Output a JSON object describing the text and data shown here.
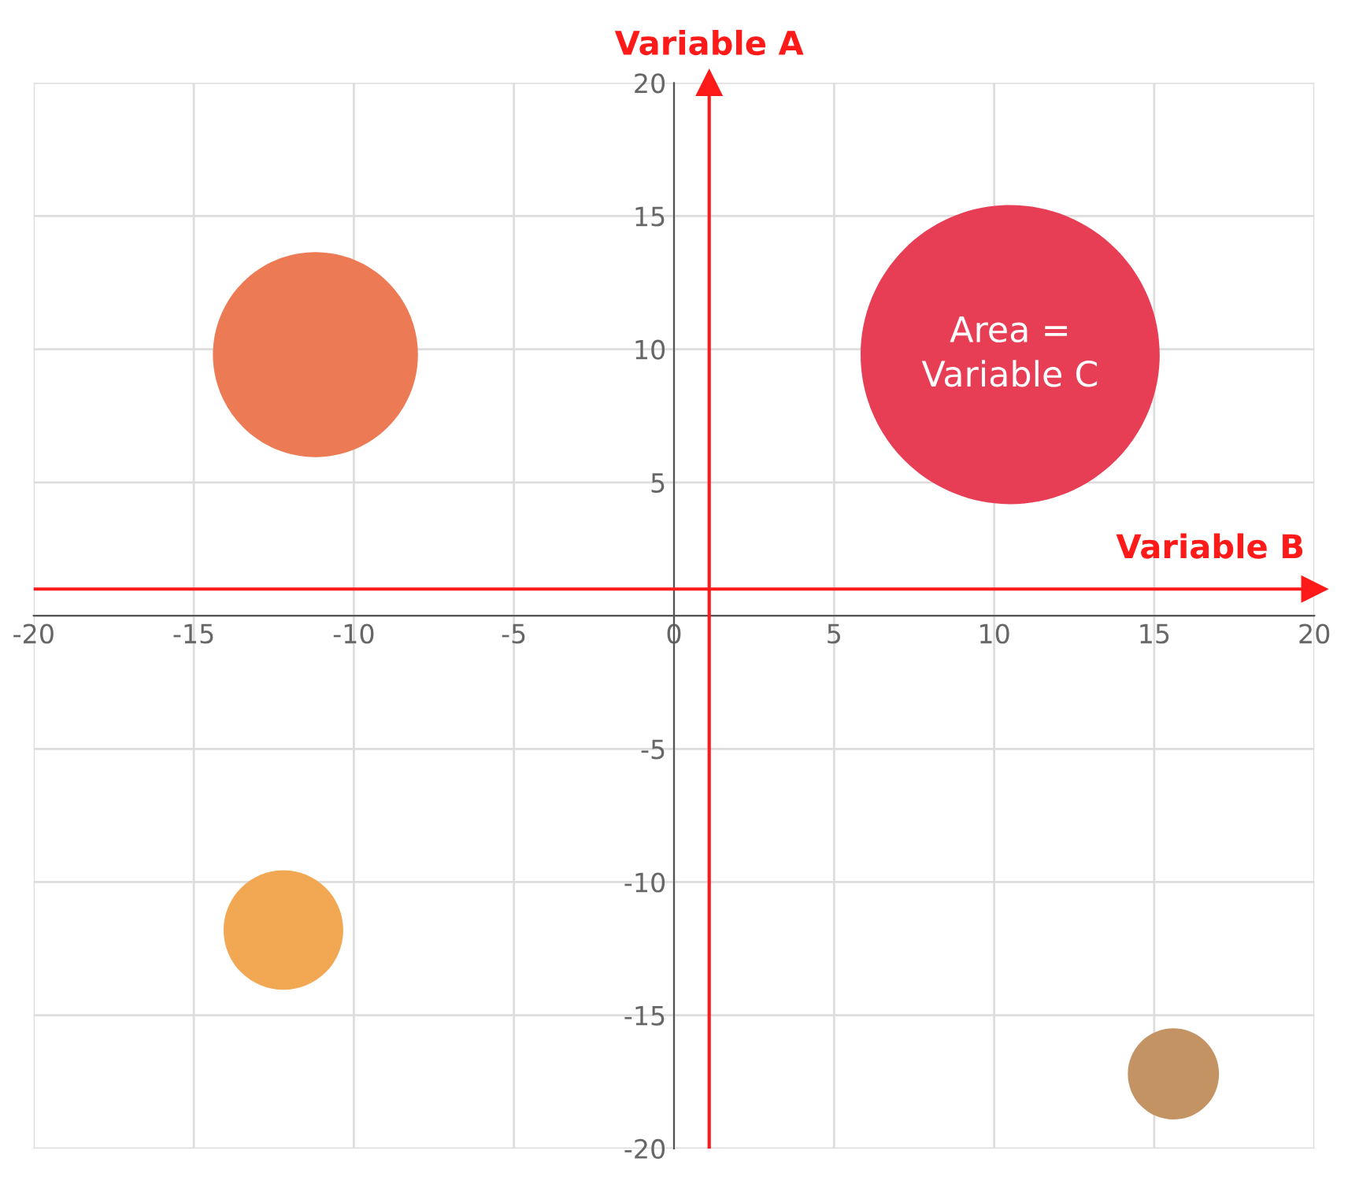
{
  "chart_data": {
    "type": "bubble",
    "x": [
      -11.2,
      10.5,
      -12.2,
      15.6
    ],
    "values": [
      9.8,
      9.8,
      -11.8,
      -17.2
    ],
    "sizes": [
      0.47,
      1,
      0.16,
      0.093
    ],
    "colors": [
      "#ec7b55",
      "#e83e55",
      "#f2a852",
      "#c49363"
    ],
    "xlim": [
      -20,
      20
    ],
    "ylim": [
      -20,
      20
    ],
    "xticks": [
      -20,
      -15,
      -10,
      -5,
      0,
      5,
      10,
      15,
      20
    ],
    "yticks": [
      -20,
      -15,
      -10,
      -5,
      {
        "value": 0,
        "label": null
      },
      5,
      10,
      15,
      20
    ],
    "grid": true,
    "ref_lines": [
      {
        "axis": "x",
        "value": 1.1,
        "label": "Variable A",
        "color": "#ff1a1a"
      },
      {
        "axis": "y",
        "value": 1.0,
        "label": "Variable B",
        "color": "#ff1a1a"
      }
    ],
    "annotations": [
      {
        "text": "Area =\nVariable C",
        "x": 10.5,
        "y": 9.8
      }
    ]
  }
}
